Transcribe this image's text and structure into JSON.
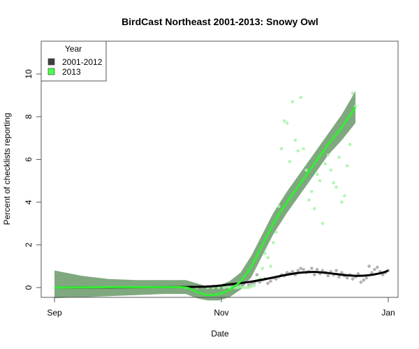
{
  "chart_data": {
    "type": "scatter",
    "title": "BirdCast Northeast 2001-2013: Snowy Owl",
    "xlabel": "Date",
    "ylabel": "Percent of checklists reporting",
    "x_ticks": [
      {
        "label": "Sep",
        "day": 0
      },
      {
        "label": "Nov",
        "day": 61
      },
      {
        "label": "Jan",
        "day": 122
      }
    ],
    "y_ticks": [
      0,
      2,
      4,
      6,
      8,
      10
    ],
    "ylim": [
      -0.45,
      11.5
    ],
    "xlim": [
      -5,
      126
    ],
    "grid": false,
    "legend": {
      "title": "Year",
      "position": "top-left",
      "entries": [
        {
          "label": "2001-2012",
          "color": "#404040"
        },
        {
          "label": "2013",
          "color": "#4cff4c"
        }
      ]
    },
    "series": [
      {
        "name": "2001-2012",
        "point_color": "#a0a0a0",
        "line_color": "#000000",
        "points": [
          [
            56,
            0.05
          ],
          [
            58,
            0.06
          ],
          [
            60,
            0.08
          ],
          [
            62,
            0.1
          ],
          [
            64,
            0.12
          ],
          [
            65,
            0.2
          ],
          [
            66,
            0.15
          ],
          [
            67,
            0.25
          ],
          [
            68,
            0.1
          ],
          [
            69,
            0.18
          ],
          [
            70,
            0.3
          ],
          [
            71,
            0.12
          ],
          [
            72,
            0.2
          ],
          [
            73,
            0.22
          ],
          [
            74,
            0.6
          ],
          [
            75,
            0.25
          ],
          [
            76,
            0.35
          ],
          [
            77,
            0.4
          ],
          [
            78,
            0.2
          ],
          [
            79,
            0.3
          ],
          [
            80,
            0.45
          ],
          [
            81,
            0.4
          ],
          [
            82,
            0.5
          ],
          [
            83,
            0.6
          ],
          [
            84,
            0.55
          ],
          [
            85,
            0.7
          ],
          [
            86,
            0.65
          ],
          [
            87,
            0.75
          ],
          [
            88,
            0.6
          ],
          [
            89,
            0.8
          ],
          [
            90,
            0.9
          ],
          [
            91,
            0.85
          ],
          [
            92,
            0.7
          ],
          [
            93,
            0.75
          ],
          [
            94,
            0.9
          ],
          [
            95,
            0.6
          ],
          [
            96,
            0.85
          ],
          [
            97,
            0.65
          ],
          [
            98,
            0.8
          ],
          [
            99,
            0.7
          ],
          [
            100,
            0.55
          ],
          [
            101,
            0.75
          ],
          [
            102,
            0.6
          ],
          [
            103,
            0.8
          ],
          [
            104,
            0.5
          ],
          [
            105,
            0.7
          ],
          [
            106,
            0.55
          ],
          [
            107,
            0.45
          ],
          [
            108,
            0.6
          ],
          [
            109,
            0.4
          ],
          [
            110,
            0.5
          ],
          [
            111,
            0.65
          ],
          [
            112,
            0.25
          ],
          [
            113,
            0.35
          ],
          [
            114,
            0.45
          ],
          [
            115,
            1.0
          ],
          [
            116,
            0.7
          ],
          [
            117,
            0.85
          ],
          [
            118,
            0.95
          ],
          [
            119,
            0.75
          ],
          [
            120,
            0.6
          ],
          [
            121,
            0.7
          ],
          [
            122,
            0.8
          ]
        ],
        "smooth": [
          [
            0,
            0.0
          ],
          [
            20,
            0.01
          ],
          [
            40,
            0.02
          ],
          [
            48,
            0.03
          ],
          [
            56,
            0.05
          ],
          [
            61,
            0.1
          ],
          [
            66,
            0.18
          ],
          [
            72,
            0.28
          ],
          [
            78,
            0.42
          ],
          [
            84,
            0.58
          ],
          [
            90,
            0.7
          ],
          [
            95,
            0.73
          ],
          [
            100,
            0.68
          ],
          [
            105,
            0.6
          ],
          [
            110,
            0.55
          ],
          [
            115,
            0.58
          ],
          [
            120,
            0.7
          ],
          [
            122,
            0.8
          ]
        ]
      },
      {
        "name": "2013",
        "point_color": "#a6f5a6",
        "line_color": "#33ee33",
        "band_color": "#7fa87f",
        "points": [
          [
            48,
            0.0
          ],
          [
            52,
            0.0
          ],
          [
            56,
            0.0
          ],
          [
            58,
            0.0
          ],
          [
            60,
            0.0
          ],
          [
            62,
            0.0
          ],
          [
            63,
            0.05
          ],
          [
            64,
            0.0
          ],
          [
            65,
            0.0
          ],
          [
            66,
            0.0
          ],
          [
            67,
            0.0
          ],
          [
            68,
            0.05
          ],
          [
            69,
            0.0
          ],
          [
            70,
            0.0
          ],
          [
            71,
            0.0
          ],
          [
            72,
            0.05
          ],
          [
            73,
            0.1
          ],
          [
            74,
            0.3
          ],
          [
            75,
            0.4
          ],
          [
            76,
            0.9
          ],
          [
            77,
            1.6
          ],
          [
            78,
            1.4
          ],
          [
            79,
            1.0
          ],
          [
            80,
            2.1
          ],
          [
            81,
            2.6
          ],
          [
            82,
            3.8
          ],
          [
            83,
            6.5
          ],
          [
            84,
            7.8
          ],
          [
            85,
            7.7
          ],
          [
            86,
            5.9
          ],
          [
            87,
            8.7
          ],
          [
            88,
            6.9
          ],
          [
            89,
            6.4
          ],
          [
            90,
            8.9
          ],
          [
            91,
            6.5
          ],
          [
            92,
            5.5
          ],
          [
            93,
            4.1
          ],
          [
            94,
            4.5
          ],
          [
            95,
            3.7
          ],
          [
            96,
            5.3
          ],
          [
            97,
            5.0
          ],
          [
            98,
            3.0
          ],
          [
            99,
            5.8
          ],
          [
            100,
            6.2
          ],
          [
            101,
            5.5
          ],
          [
            102,
            4.9
          ],
          [
            103,
            4.7
          ],
          [
            104,
            6.1
          ],
          [
            105,
            4.0
          ],
          [
            106,
            4.3
          ],
          [
            107,
            5.7
          ],
          [
            108,
            6.7
          ],
          [
            109,
            9.1
          ],
          [
            110,
            8.5
          ]
        ],
        "smooth": [
          [
            0,
            0.0
          ],
          [
            20,
            0.02
          ],
          [
            40,
            0.02
          ],
          [
            48,
            0.0
          ],
          [
            52,
            -0.2
          ],
          [
            56,
            -0.35
          ],
          [
            60,
            -0.3
          ],
          [
            64,
            -0.1
          ],
          [
            68,
            0.3
          ],
          [
            72,
            1.0
          ],
          [
            76,
            2.0
          ],
          [
            80,
            3.0
          ],
          [
            85,
            4.0
          ],
          [
            90,
            4.9
          ],
          [
            95,
            5.8
          ],
          [
            100,
            6.7
          ],
          [
            105,
            7.5
          ],
          [
            110,
            8.45
          ]
        ],
        "band_upper": [
          [
            0,
            0.8
          ],
          [
            10,
            0.55
          ],
          [
            20,
            0.4
          ],
          [
            30,
            0.35
          ],
          [
            40,
            0.35
          ],
          [
            48,
            0.35
          ],
          [
            52,
            0.2
          ],
          [
            56,
            0.05
          ],
          [
            60,
            0.1
          ],
          [
            64,
            0.3
          ],
          [
            68,
            0.7
          ],
          [
            72,
            1.5
          ],
          [
            76,
            2.5
          ],
          [
            80,
            3.5
          ],
          [
            85,
            4.5
          ],
          [
            90,
            5.4
          ],
          [
            95,
            6.3
          ],
          [
            100,
            7.2
          ],
          [
            105,
            8.1
          ],
          [
            110,
            9.2
          ]
        ],
        "band_lower": [
          [
            0,
            -0.5
          ],
          [
            10,
            -0.45
          ],
          [
            20,
            -0.4
          ],
          [
            30,
            -0.35
          ],
          [
            40,
            -0.3
          ],
          [
            48,
            -0.3
          ],
          [
            52,
            -0.5
          ],
          [
            56,
            -0.6
          ],
          [
            60,
            -0.6
          ],
          [
            64,
            -0.45
          ],
          [
            68,
            -0.1
          ],
          [
            72,
            0.5
          ],
          [
            76,
            1.5
          ],
          [
            80,
            2.5
          ],
          [
            85,
            3.5
          ],
          [
            90,
            4.4
          ],
          [
            95,
            5.3
          ],
          [
            100,
            6.2
          ],
          [
            105,
            6.9
          ],
          [
            110,
            7.7
          ]
        ]
      }
    ]
  }
}
